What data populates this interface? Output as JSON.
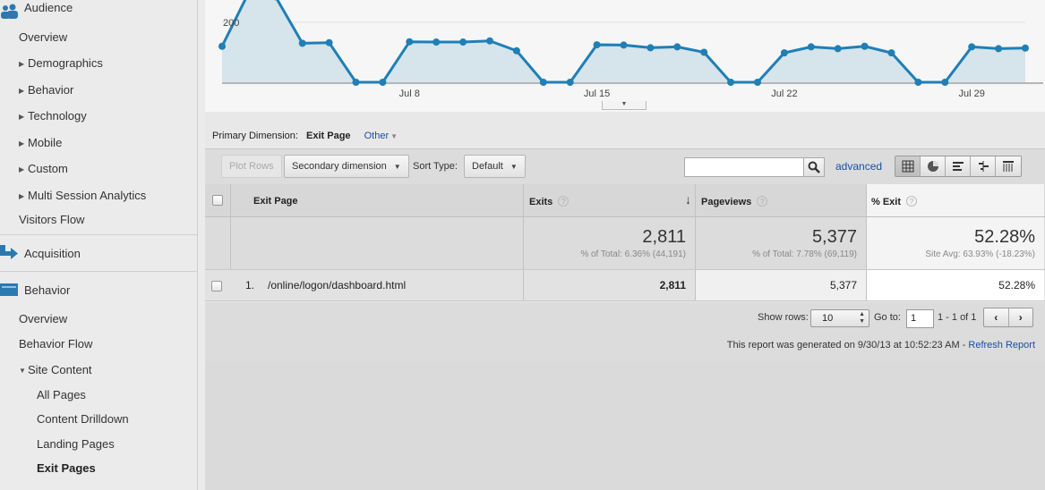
{
  "sidebar": {
    "audience": {
      "label": "Audience",
      "icon": "audience-icon"
    },
    "audience_items": [
      {
        "label": "Overview"
      },
      {
        "label": "Demographics"
      },
      {
        "label": "Behavior"
      },
      {
        "label": "Technology"
      },
      {
        "label": "Mobile"
      },
      {
        "label": "Custom"
      },
      {
        "label": "Multi Session Analytics"
      },
      {
        "label": "Visitors Flow"
      }
    ],
    "acquisition": {
      "label": "Acquisition",
      "icon": "acquisition-arrow-icon"
    },
    "behavior": {
      "label": "Behavior",
      "icon": "behavior-icon"
    },
    "behavior_items": [
      {
        "label": "Overview"
      },
      {
        "label": "Behavior Flow"
      },
      {
        "label": "Site Content"
      },
      {
        "label": "All Pages"
      },
      {
        "label": "Content Drilldown"
      },
      {
        "label": "Landing Pages"
      },
      {
        "label": "Exit Pages"
      }
    ]
  },
  "chart": {
    "y_tick": "200",
    "x_ticks": [
      "Jul 8",
      "Jul 15",
      "Jul 22",
      "Jul 29"
    ],
    "line_color": "#1f7fb6",
    "fill_color": "#d6e4ec"
  },
  "chart_data": {
    "type": "area",
    "ylabel": "",
    "xlabel": "",
    "x_ticks": [
      "Jul 8",
      "Jul 15",
      "Jul 22",
      "Jul 29"
    ],
    "ylim": [
      0,
      310
    ],
    "series": [
      {
        "values": [
          120,
          300,
          285,
          130,
          132,
          0,
          0,
          135,
          134,
          134,
          138,
          105,
          0,
          0,
          125,
          124,
          115,
          118,
          100,
          0,
          0,
          98,
          118,
          112,
          120,
          98,
          0,
          0,
          118,
          112,
          114
        ]
      }
    ]
  },
  "dimension": {
    "label": "Primary Dimension:",
    "current": "Exit Page",
    "other": "Other"
  },
  "toolbar": {
    "plot_rows": "Plot Rows",
    "secondary": "Secondary dimension",
    "sort_type_label": "Sort Type:",
    "sort_value": "Default",
    "search_value": "",
    "advanced": "advanced"
  },
  "table": {
    "headers": {
      "page": "Exit Page",
      "exits": "Exits",
      "pageviews": "Pageviews",
      "exit_pct": "% Exit"
    },
    "totals": {
      "exits": "2,811",
      "exits_sub": "% of Total: 6.36% (44,191)",
      "pageviews": "5,377",
      "pageviews_sub": "% of Total: 7.78% (69,119)",
      "exit_pct": "52.28%",
      "exit_pct_sub": "Site Avg: 63.93% (-18.23%)"
    },
    "rows": [
      {
        "index": "1.",
        "page": "/online/logon/dashboard.html",
        "exits": "2,811",
        "pageviews": "5,377",
        "exit_pct": "52.28%"
      }
    ]
  },
  "pager": {
    "show_rows_label": "Show rows:",
    "show_rows_value": "10",
    "goto_label": "Go to:",
    "goto_value": "1",
    "range": "1 - 1 of 1"
  },
  "footer": {
    "generated": "This report was generated on 9/30/13 at 10:52:23 AM - ",
    "refresh": "Refresh Report"
  }
}
